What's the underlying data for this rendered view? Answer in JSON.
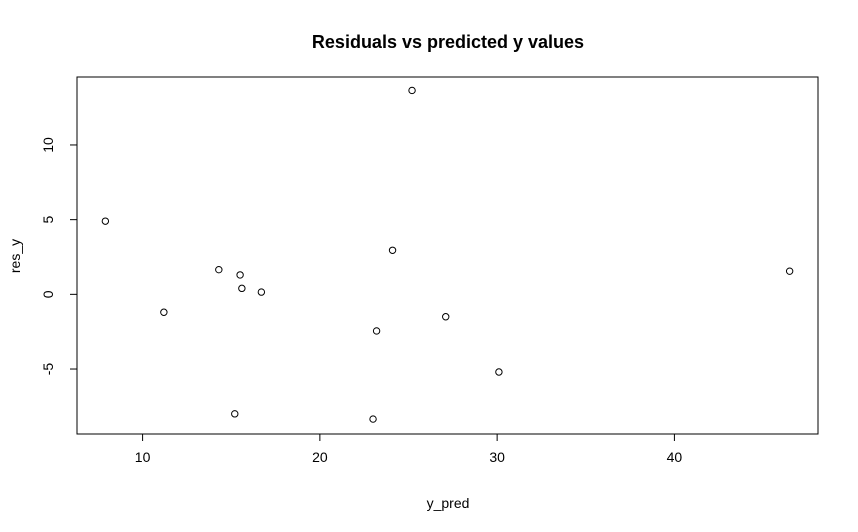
{
  "chart_data": {
    "type": "scatter",
    "title": "Residuals vs predicted y values",
    "xlabel": "y_pred",
    "ylabel": "res_y",
    "xlim": [
      6.3,
      48.1
    ],
    "ylim": [
      -9.35,
      14.55
    ],
    "xticks": [
      10,
      20,
      30,
      40
    ],
    "yticks": [
      -5,
      0,
      5,
      10
    ],
    "grid": false,
    "points": [
      {
        "x": 7.9,
        "y": 4.9
      },
      {
        "x": 11.2,
        "y": -1.2
      },
      {
        "x": 14.3,
        "y": 1.65
      },
      {
        "x": 15.2,
        "y": -8.0
      },
      {
        "x": 15.5,
        "y": 1.3
      },
      {
        "x": 15.6,
        "y": 0.4
      },
      {
        "x": 16.7,
        "y": 0.15
      },
      {
        "x": 23.0,
        "y": -8.35
      },
      {
        "x": 23.2,
        "y": -2.45
      },
      {
        "x": 24.1,
        "y": 2.95
      },
      {
        "x": 25.2,
        "y": 13.65
      },
      {
        "x": 27.1,
        "y": -1.5
      },
      {
        "x": 30.1,
        "y": -5.2
      },
      {
        "x": 46.5,
        "y": 1.55
      }
    ]
  }
}
